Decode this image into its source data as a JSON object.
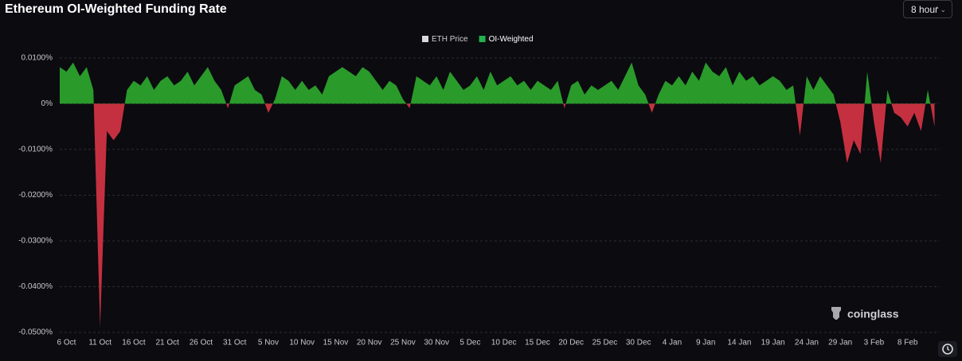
{
  "chart_data": {
    "type": "area",
    "title": "Ethereum OI-Weighted Funding Rate",
    "categories": [
      null,
      "6 Oct",
      null,
      null,
      null,
      null,
      "11 Oct",
      null,
      null,
      null,
      null,
      "16 Oct",
      null,
      null,
      null,
      null,
      "21 Oct",
      null,
      null,
      null,
      null,
      "26 Oct",
      null,
      null,
      null,
      null,
      "31 Oct",
      null,
      null,
      null,
      null,
      "5 Nov",
      null,
      null,
      null,
      null,
      "10 Nov",
      null,
      null,
      null,
      null,
      "15 Nov",
      null,
      null,
      null,
      null,
      "20 Nov",
      null,
      null,
      null,
      null,
      "25 Nov",
      null,
      null,
      null,
      null,
      "30 Nov",
      null,
      null,
      null,
      null,
      "5 Dec",
      null,
      null,
      null,
      null,
      "10 Dec",
      null,
      null,
      null,
      null,
      "15 Dec",
      null,
      null,
      null,
      null,
      "20 Dec",
      null,
      null,
      null,
      null,
      "25 Dec",
      null,
      null,
      null,
      null,
      "30 Dec",
      null,
      null,
      null,
      null,
      "4 Jan",
      null,
      null,
      null,
      null,
      "9 Jan",
      null,
      null,
      null,
      null,
      "14 Jan",
      null,
      null,
      null,
      null,
      "19 Jan",
      null,
      null,
      null,
      null,
      "24 Jan",
      null,
      null,
      null,
      null,
      "29 Jan",
      null,
      null,
      null,
      null,
      "3 Feb",
      null,
      null,
      null,
      null,
      "8 Feb",
      null,
      null,
      null,
      null
    ],
    "series": [
      {
        "name": "ETH Price",
        "color": "#d9d9d9",
        "visible": false
      },
      {
        "name": "OI-Weighted",
        "color": "#2a9a2a",
        "negative_color": "#c4303f",
        "legend_color": "#22b14c",
        "values": [
          0.008,
          0.007,
          0.009,
          0.006,
          0.008,
          0.003,
          -0.049,
          -0.006,
          -0.008,
          -0.006,
          0.003,
          0.005,
          0.004,
          0.006,
          0.003,
          0.005,
          0.006,
          0.004,
          0.005,
          0.007,
          0.004,
          0.006,
          0.008,
          0.005,
          0.003,
          -0.001,
          0.004,
          0.005,
          0.006,
          0.003,
          0.002,
          -0.002,
          0.001,
          0.006,
          0.005,
          0.003,
          0.005,
          0.003,
          0.004,
          0.002,
          0.006,
          0.007,
          0.008,
          0.007,
          0.006,
          0.008,
          0.007,
          0.005,
          0.003,
          0.005,
          0.004,
          0.001,
          -0.001,
          0.006,
          0.005,
          0.004,
          0.006,
          0.003,
          0.007,
          0.005,
          0.003,
          0.004,
          0.006,
          0.003,
          0.007,
          0.004,
          0.005,
          0.006,
          0.004,
          0.005,
          0.003,
          0.005,
          0.004,
          0.003,
          0.005,
          -0.001,
          0.004,
          0.005,
          0.002,
          0.004,
          0.003,
          0.004,
          0.005,
          0.003,
          0.006,
          0.009,
          0.004,
          0.002,
          -0.002,
          0.002,
          0.005,
          0.004,
          0.006,
          0.004,
          0.007,
          0.005,
          0.009,
          0.007,
          0.006,
          0.008,
          0.004,
          0.007,
          0.005,
          0.006,
          0.004,
          0.005,
          0.006,
          0.005,
          0.003,
          0.004,
          -0.007,
          0.006,
          0.003,
          0.006,
          0.004,
          0.002,
          -0.004,
          -0.013,
          -0.008,
          -0.011,
          0.007,
          -0.004,
          -0.013,
          0.003,
          -0.002,
          -0.003,
          -0.005,
          -0.002,
          -0.006,
          0.003,
          -0.005
        ]
      }
    ],
    "ylim": [
      -0.05,
      0.0105
    ],
    "yticks": [
      {
        "value": 0.01,
        "label": "0.0100%"
      },
      {
        "value": 0,
        "label": "0%"
      },
      {
        "value": -0.01,
        "label": "-0.0100%"
      },
      {
        "value": -0.02,
        "label": "-0.0200%"
      },
      {
        "value": -0.03,
        "label": "-0.0300%"
      },
      {
        "value": -0.04,
        "label": "-0.0400%"
      },
      {
        "value": -0.05,
        "label": "-0.0500%"
      }
    ],
    "grid": true
  },
  "controls": {
    "interval": "8 hour"
  },
  "watermark": "coinglass"
}
